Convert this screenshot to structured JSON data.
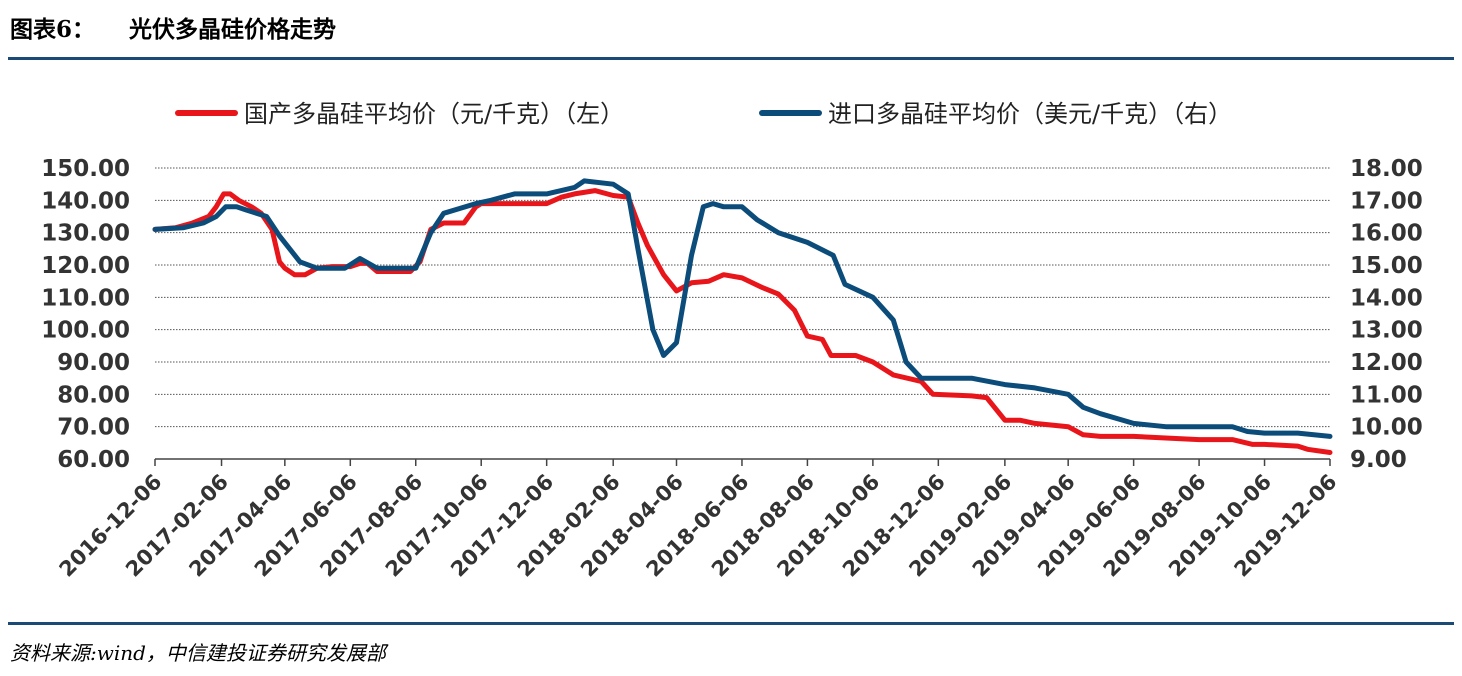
{
  "header": {
    "figure_label": "图表6：",
    "title": "光伏多晶硅价格走势"
  },
  "source_note": "资料来源:wind，中信建投证券研究发展部",
  "colors": {
    "accent_rule": "#1a4a75",
    "series_domestic": "#e8161b",
    "series_import": "#0b4c7a",
    "grid": "#555555"
  },
  "chart_data": {
    "type": "line",
    "title": "光伏多晶硅价格走势",
    "legend_position": "top",
    "grid": true,
    "y_left": {
      "range": [
        60,
        150
      ],
      "ticks": [
        "60.00",
        "70.00",
        "80.00",
        "90.00",
        "100.00",
        "110.00",
        "120.00",
        "130.00",
        "140.00",
        "150.00"
      ]
    },
    "y_right": {
      "range": [
        9,
        18
      ],
      "ticks": [
        "9.00",
        "10.00",
        "11.00",
        "12.00",
        "13.00",
        "14.00",
        "15.00",
        "16.00",
        "17.00",
        "18.00"
      ]
    },
    "x_range": [
      "2016-12-06",
      "2019-12-06"
    ],
    "x_ticks": [
      "2016-12-06",
      "2017-02-06",
      "2017-04-06",
      "2017-06-06",
      "2017-08-06",
      "2017-10-06",
      "2017-12-06",
      "2018-02-06",
      "2018-04-06",
      "2018-06-06",
      "2018-08-06",
      "2018-10-06",
      "2018-12-06",
      "2019-02-06",
      "2019-04-06",
      "2019-06-06",
      "2019-08-06",
      "2019-10-06",
      "2019-12-06"
    ],
    "series": [
      {
        "name": "国产多晶硅平均价（元/千克）（左）",
        "axis": "left",
        "points": [
          [
            "2016-12-06",
            131
          ],
          [
            "2016-12-25",
            131.5
          ],
          [
            "2017-01-10",
            133
          ],
          [
            "2017-01-25",
            135
          ],
          [
            "2017-02-01",
            138
          ],
          [
            "2017-02-08",
            142
          ],
          [
            "2017-02-14",
            142
          ],
          [
            "2017-02-22",
            140
          ],
          [
            "2017-03-06",
            138
          ],
          [
            "2017-03-15",
            136
          ],
          [
            "2017-03-25",
            131
          ],
          [
            "2017-04-01",
            121
          ],
          [
            "2017-04-06",
            119
          ],
          [
            "2017-04-15",
            117
          ],
          [
            "2017-04-25",
            117
          ],
          [
            "2017-05-06",
            119
          ],
          [
            "2017-05-20",
            119.5
          ],
          [
            "2017-06-06",
            119.5
          ],
          [
            "2017-06-15",
            120.5
          ],
          [
            "2017-06-22",
            120.5
          ],
          [
            "2017-07-01",
            118
          ],
          [
            "2017-07-15",
            118
          ],
          [
            "2017-08-01",
            118
          ],
          [
            "2017-08-10",
            121
          ],
          [
            "2017-08-20",
            131
          ],
          [
            "2017-09-01",
            133
          ],
          [
            "2017-09-20",
            133
          ],
          [
            "2017-10-01",
            138
          ],
          [
            "2017-10-06",
            139
          ],
          [
            "2017-11-01",
            139
          ],
          [
            "2017-12-06",
            139
          ],
          [
            "2017-12-20",
            141
          ],
          [
            "2018-01-01",
            142
          ],
          [
            "2018-01-20",
            143
          ],
          [
            "2018-02-06",
            141.5
          ],
          [
            "2018-02-20",
            141
          ],
          [
            "2018-03-01",
            133
          ],
          [
            "2018-03-10",
            126
          ],
          [
            "2018-03-25",
            117
          ],
          [
            "2018-04-06",
            112
          ],
          [
            "2018-04-20",
            114.5
          ],
          [
            "2018-05-06",
            115
          ],
          [
            "2018-05-20",
            117
          ],
          [
            "2018-06-06",
            116
          ],
          [
            "2018-06-25",
            113
          ],
          [
            "2018-07-10",
            111
          ],
          [
            "2018-07-25",
            106
          ],
          [
            "2018-08-06",
            98
          ],
          [
            "2018-08-20",
            97
          ],
          [
            "2018-08-28",
            92
          ],
          [
            "2018-09-20",
            92
          ],
          [
            "2018-10-06",
            90
          ],
          [
            "2018-10-25",
            86
          ],
          [
            "2018-11-20",
            84
          ],
          [
            "2018-12-01",
            80
          ],
          [
            "2019-01-06",
            79.5
          ],
          [
            "2019-01-20",
            79
          ],
          [
            "2019-02-06",
            72
          ],
          [
            "2019-02-20",
            72
          ],
          [
            "2019-03-06",
            71
          ],
          [
            "2019-04-06",
            70
          ],
          [
            "2019-04-20",
            67.5
          ],
          [
            "2019-05-06",
            67
          ],
          [
            "2019-06-06",
            67
          ],
          [
            "2019-07-06",
            66.5
          ],
          [
            "2019-08-06",
            66
          ],
          [
            "2019-09-06",
            66
          ],
          [
            "2019-09-25",
            64.5
          ],
          [
            "2019-10-06",
            64.5
          ],
          [
            "2019-11-06",
            64
          ],
          [
            "2019-11-15",
            63
          ],
          [
            "2019-12-06",
            62
          ]
        ]
      },
      {
        "name": "进口多晶硅平均价（美元/千克）（右）",
        "axis": "right",
        "points": [
          [
            "2016-12-06",
            16.1
          ],
          [
            "2017-01-01",
            16.15
          ],
          [
            "2017-01-20",
            16.3
          ],
          [
            "2017-02-01",
            16.5
          ],
          [
            "2017-02-10",
            16.8
          ],
          [
            "2017-02-20",
            16.8
          ],
          [
            "2017-03-01",
            16.7
          ],
          [
            "2017-03-20",
            16.5
          ],
          [
            "2017-04-01",
            15.9
          ],
          [
            "2017-04-20",
            15.1
          ],
          [
            "2017-05-06",
            14.9
          ],
          [
            "2017-06-01",
            14.9
          ],
          [
            "2017-06-15",
            15.2
          ],
          [
            "2017-07-01",
            14.9
          ],
          [
            "2017-08-06",
            14.9
          ],
          [
            "2017-08-20",
            16.0
          ],
          [
            "2017-09-01",
            16.6
          ],
          [
            "2017-10-01",
            16.9
          ],
          [
            "2017-10-15",
            17.0
          ],
          [
            "2017-11-06",
            17.2
          ],
          [
            "2017-12-06",
            17.2
          ],
          [
            "2018-01-01",
            17.4
          ],
          [
            "2018-01-10",
            17.6
          ],
          [
            "2018-02-06",
            17.5
          ],
          [
            "2018-02-20",
            17.2
          ],
          [
            "2018-03-01",
            15.5
          ],
          [
            "2018-03-15",
            13.0
          ],
          [
            "2018-03-25",
            12.2
          ],
          [
            "2018-04-06",
            12.6
          ],
          [
            "2018-04-20",
            15.3
          ],
          [
            "2018-05-01",
            16.8
          ],
          [
            "2018-05-10",
            16.9
          ],
          [
            "2018-05-20",
            16.8
          ],
          [
            "2018-06-06",
            16.8
          ],
          [
            "2018-06-20",
            16.4
          ],
          [
            "2018-07-10",
            16.0
          ],
          [
            "2018-08-06",
            15.7
          ],
          [
            "2018-08-30",
            15.3
          ],
          [
            "2018-09-10",
            14.4
          ],
          [
            "2018-10-06",
            14.0
          ],
          [
            "2018-10-25",
            13.3
          ],
          [
            "2018-11-06",
            12.0
          ],
          [
            "2018-11-20",
            11.5
          ],
          [
            "2018-12-06",
            11.5
          ],
          [
            "2019-01-06",
            11.5
          ],
          [
            "2019-02-06",
            11.3
          ],
          [
            "2019-03-06",
            11.2
          ],
          [
            "2019-04-06",
            11.0
          ],
          [
            "2019-04-20",
            10.6
          ],
          [
            "2019-05-06",
            10.4
          ],
          [
            "2019-06-06",
            10.1
          ],
          [
            "2019-07-06",
            10.0
          ],
          [
            "2019-08-06",
            10.0
          ],
          [
            "2019-09-06",
            10.0
          ],
          [
            "2019-09-20",
            9.85
          ],
          [
            "2019-10-06",
            9.8
          ],
          [
            "2019-11-06",
            9.8
          ],
          [
            "2019-12-06",
            9.7
          ]
        ]
      }
    ]
  }
}
